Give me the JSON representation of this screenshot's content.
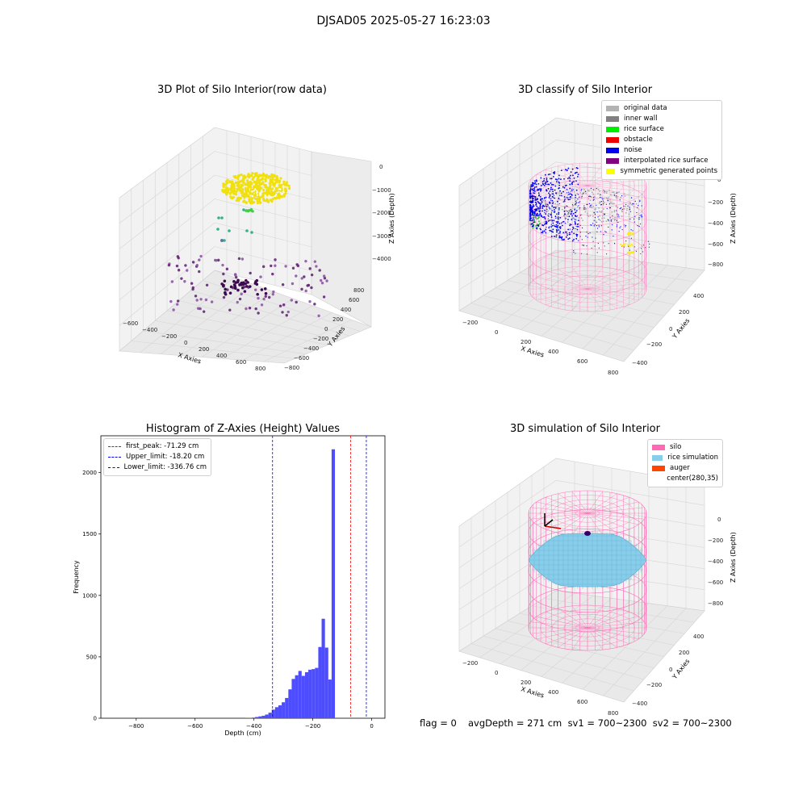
{
  "figure_title": "DJSAD05 2025-05-27 16:23:03",
  "footer": {
    "flag": "flag = 0",
    "stats": "avgDepth = 271 cm  sv1 = 700~2300  sv2 = 700~2300"
  },
  "panel_raw": {
    "title": "3D Plot of Silo Interior(row data)",
    "xlabel": "X Axies",
    "ylabel": "Y Axies",
    "zlabel": "Z Axies (Depth)",
    "x_ticks": [
      "−600",
      "−400",
      "−200",
      "0",
      "200",
      "400",
      "600",
      "800"
    ],
    "y_ticks": [
      "−800",
      "−600",
      "−400",
      "−200",
      "0",
      "200",
      "400",
      "600",
      "800"
    ],
    "z_ticks": [
      "0",
      "−1000",
      "−2000",
      "−3000",
      "−4000"
    ]
  },
  "panel_classify": {
    "title": "3D classify of Silo Interior",
    "xlabel": "X Axies",
    "ylabel": "Y Axies",
    "zlabel": "Z Axies (Depth)",
    "x_ticks": [
      "−200",
      "0",
      "200",
      "400",
      "600",
      "800"
    ],
    "y_ticks": [
      "−400",
      "−200",
      "0",
      "200",
      "400"
    ],
    "z_ticks": [
      "0",
      "−200",
      "−400",
      "−600",
      "−800"
    ],
    "legend": [
      {
        "label": "original data",
        "color": "#b3b3b3"
      },
      {
        "label": "inner wall",
        "color": "#808080"
      },
      {
        "label": "rice surface",
        "color": "#00ee00"
      },
      {
        "label": "obstacle",
        "color": "#ee0000"
      },
      {
        "label": "noise",
        "color": "#0000ee"
      },
      {
        "label": "interpolated rice surface",
        "color": "#800080"
      },
      {
        "label": "symmetric generated points",
        "color": "#ffff00"
      }
    ]
  },
  "panel_sim": {
    "title": "3D simulation of Silo Interior",
    "xlabel": "X Axies",
    "ylabel": "Y Axies",
    "zlabel": "Z Axies (Depth)",
    "x_ticks": [
      "−200",
      "0",
      "200",
      "400",
      "600",
      "800"
    ],
    "y_ticks": [
      "−400",
      "−200",
      "0",
      "200",
      "400"
    ],
    "z_ticks": [
      "0",
      "−200",
      "−400",
      "−600",
      "−800"
    ],
    "legend": [
      {
        "label": "silo",
        "color": "#ff69b4"
      },
      {
        "label": "rice simulation",
        "color": "#87ceeb"
      },
      {
        "label": "auger",
        "color": "#ff4500"
      },
      {
        "label": "center(280,35)",
        "color": ""
      }
    ]
  },
  "chart_data": [
    {
      "type": "scatter",
      "title": "3D Plot of Silo Interior(row data)",
      "xlabel": "X Axies",
      "ylabel": "Y Axies",
      "zlabel": "Z Axies (Depth)",
      "xlim": [
        -700,
        900
      ],
      "ylim": [
        -800,
        800
      ],
      "zlim": [
        -4500,
        0
      ]
    },
    {
      "type": "scatter",
      "title": "3D classify of Silo Interior",
      "xlabel": "X Axies",
      "ylabel": "Y Axies",
      "zlabel": "Z Axies (Depth)",
      "xlim": [
        -250,
        800
      ],
      "ylim": [
        -450,
        450
      ],
      "zlim": [
        -900,
        0
      ],
      "series": [
        {
          "name": "original data"
        },
        {
          "name": "inner wall"
        },
        {
          "name": "rice surface"
        },
        {
          "name": "obstacle"
        },
        {
          "name": "noise"
        },
        {
          "name": "interpolated rice surface"
        },
        {
          "name": "symmetric generated points"
        }
      ]
    },
    {
      "type": "bar",
      "title": "Histogram of Z-Axies (Height) Values",
      "xlabel": "Depth (cm)",
      "ylabel": "Frequency",
      "xlim": [
        -920,
        45
      ],
      "ylim": [
        0,
        2300
      ],
      "x_ticks": [
        -800,
        -600,
        -400,
        -200,
        0
      ],
      "y_ticks": [
        0,
        500,
        1000,
        1500,
        2000
      ],
      "bin_width": 11.3,
      "bin_starts": [
        -430,
        -418.7,
        -407.4,
        -396.1,
        -384.8,
        -373.5,
        -362.2,
        -350.9,
        -339.6,
        -328.3,
        -317,
        -305.7,
        -294.4,
        -283.1,
        -271.8,
        -260.5,
        -249.2,
        -237.9,
        -226.6,
        -215.3,
        -204,
        -192.7,
        -181.4,
        -170.1,
        -158.8,
        -147.5,
        -136.2,
        -124.9,
        -113.6,
        -102.3,
        -91,
        -79.7,
        -68.4,
        -57.1,
        -45.8,
        -34.5,
        -23.2,
        -11.9
      ],
      "values": [
        2,
        3,
        5,
        10,
        15,
        20,
        30,
        45,
        70,
        90,
        105,
        130,
        165,
        235,
        320,
        350,
        385,
        345,
        375,
        395,
        400,
        410,
        580,
        810,
        575,
        315,
        2190,
        0,
        0,
        0,
        0,
        0,
        0,
        0,
        0,
        0,
        0,
        0
      ],
      "reference_lines": [
        {
          "name": "first_peak: -71.29 cm",
          "x": -71.29,
          "color": "#ff0000"
        },
        {
          "name": "Upper_limit: -18.20 cm",
          "x": -18.2,
          "color": "#0000ff"
        },
        {
          "name": "Lower_limit: -336.76 cm",
          "x": -336.76,
          "color": "#0000ff"
        }
      ],
      "bar_color": "#4d4dff"
    },
    {
      "type": "scatter",
      "title": "3D simulation of Silo Interior",
      "xlabel": "X Axies",
      "ylabel": "Y Axies",
      "zlabel": "Z Axies (Depth)",
      "xlim": [
        -250,
        800
      ],
      "ylim": [
        -450,
        450
      ],
      "zlim": [
        -900,
        0
      ],
      "series": [
        {
          "name": "silo"
        },
        {
          "name": "rice simulation"
        },
        {
          "name": "auger"
        }
      ]
    }
  ]
}
